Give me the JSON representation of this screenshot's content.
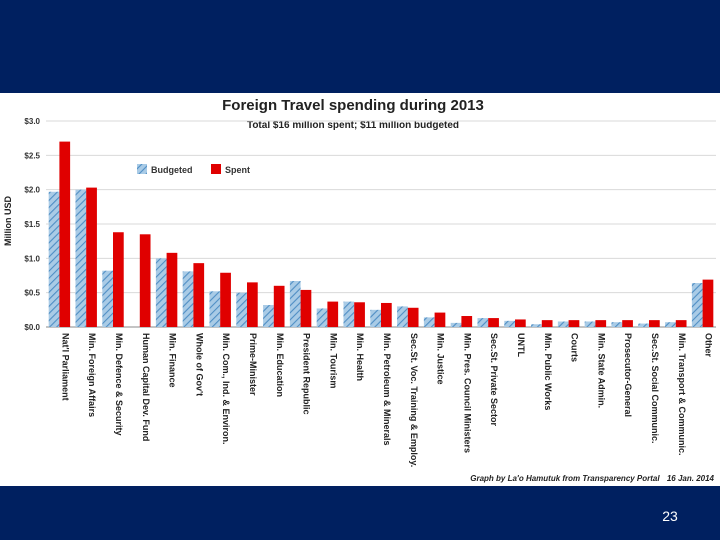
{
  "slide": {
    "page_number": "23"
  },
  "colors": {
    "background": "#002060",
    "budgeted": "#a9cbe6",
    "budgeted_stripe": "#4f8ec4",
    "spent": "#e00000"
  },
  "chart_data": {
    "type": "bar",
    "title": "Foreign Travel spending during 2013",
    "subtitle": "Total $16 million spent; $11 million budgeted",
    "ylabel": "Million USD",
    "xlabel": "",
    "ylim": [
      0,
      3.0
    ],
    "yticks": [
      "$0.0",
      "$0.5",
      "$1.0",
      "$1.5",
      "$2.0",
      "$2.5",
      "$3.0"
    ],
    "grid": true,
    "legend": "top-left",
    "categories": [
      "Nat'l Parliament",
      "Min. Foreign Affairs",
      "Min. Defence & Security",
      "Human Capital Dev. Fund",
      "Min. Finance",
      "Whole of Gov't",
      "Min. Com., Ind. & Environ.",
      "Prime-Minister",
      "Min. Education",
      "President Republic",
      "Min. Tourism",
      "Min. Health",
      "Min. Petroleum & Minerals",
      "Sec.St. Voc. Training & Employ.",
      "Min. Justice",
      "Min. Pres. Council Ministers",
      "Sec.St. Private Sector",
      "UNTL",
      "Min. Public Works",
      "Courts",
      "Min. State Admin.",
      "Prosecutor-General",
      "Sec.St. Social Communic.",
      "Min. Transport & Communic.",
      "Other"
    ],
    "series": [
      {
        "name": "Budgeted",
        "values": [
          1.97,
          2.0,
          0.82,
          0,
          1.0,
          0.81,
          0.52,
          0.5,
          0.32,
          0.67,
          0.27,
          0.37,
          0.25,
          0.3,
          0.14,
          0.06,
          0.13,
          0.09,
          0.04,
          0.08,
          0.08,
          0.07,
          0.05,
          0.07,
          0.64
        ]
      },
      {
        "name": "Spent",
        "values": [
          2.7,
          2.03,
          1.38,
          1.35,
          1.08,
          0.93,
          0.79,
          0.65,
          0.6,
          0.54,
          0.37,
          0.36,
          0.35,
          0.28,
          0.21,
          0.16,
          0.13,
          0.11,
          0.1,
          0.1,
          0.1,
          0.1,
          0.1,
          0.1,
          0.69
        ]
      }
    ],
    "source": "Graph by La'o Hamutuk from Transparency Portal",
    "date": "16 Jan. 2014"
  }
}
